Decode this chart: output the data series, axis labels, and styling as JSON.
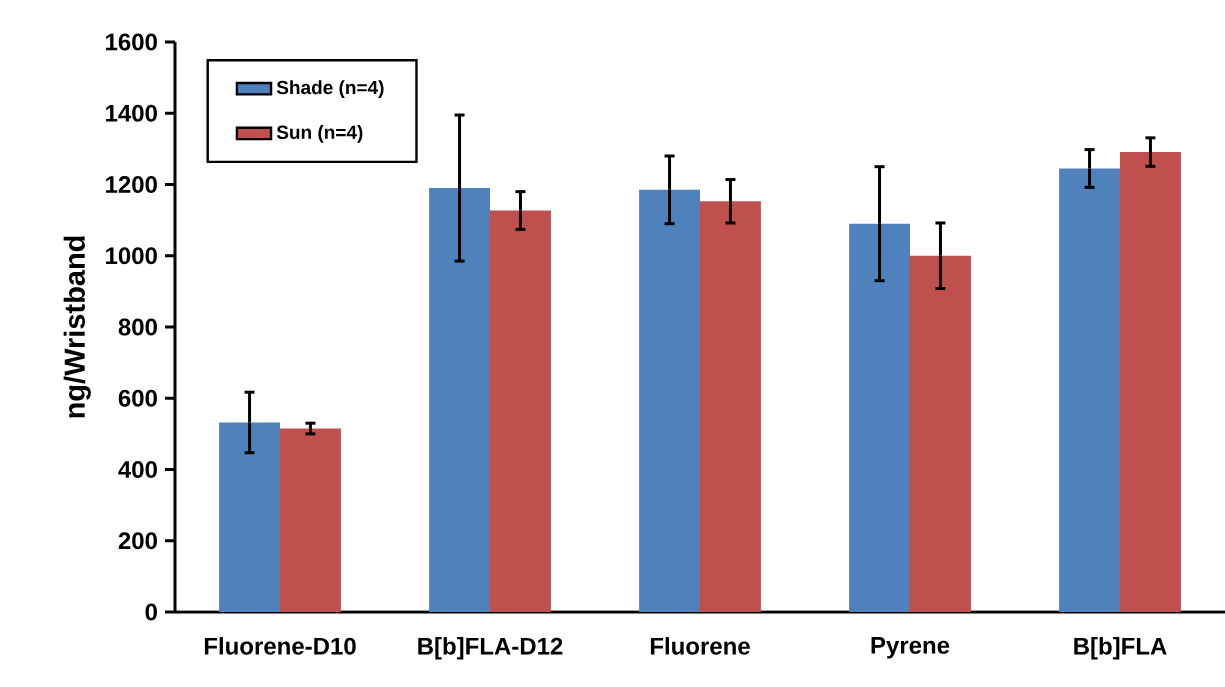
{
  "chart_data": {
    "type": "bar",
    "ylabel": "ng/Wristband",
    "categories": [
      "Fluorene-D10",
      "B[b]FLA-D12",
      "Fluorene",
      "Pyrene",
      "B[b]FLA"
    ],
    "ylim": [
      0,
      1600
    ],
    "yticks": [
      0,
      200,
      400,
      600,
      800,
      1000,
      1200,
      1400,
      1600
    ],
    "legend": "top left",
    "series": [
      {
        "name": "Shade (n=4)",
        "color": "#4f81bd",
        "values": [
          532,
          1190,
          1185,
          1090,
          1245
        ],
        "errors": [
          85,
          205,
          95,
          160,
          53
        ]
      },
      {
        "name": "Sun (n=4)",
        "color": "#c0504d",
        "values": [
          515,
          1127,
          1153,
          1000,
          1291
        ],
        "errors": [
          15,
          53,
          61,
          92,
          40
        ]
      }
    ]
  }
}
